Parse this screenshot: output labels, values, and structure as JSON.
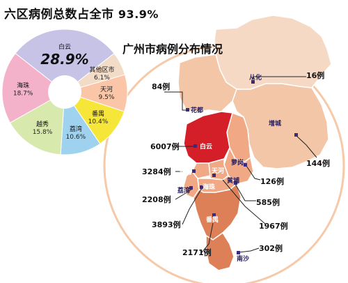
{
  "headline": {
    "text": "六区病例总数占全市",
    "value": "93.9%"
  },
  "map_title": "广州市病例分布情况",
  "colors": {
    "map_lightest": "#f6d9c5",
    "map_light": "#f2c6a6",
    "map_mid": "#f1a985",
    "map_dark": "#de8057",
    "map_red": "#d41f29",
    "pie_baiyun": "#c6c3e6",
    "pie_other": "#f3dcc7",
    "pie_tianhe": "#fbc6a8",
    "pie_panyu": "#f7e63a",
    "pie_liwan": "#9fd2ef",
    "pie_yuexiu": "#d8e9ad",
    "pie_haizhu": "#f3b2c9",
    "marker": "#3b2b7a",
    "leader": "#222222",
    "frame": "#f6c9a8"
  },
  "chart_data": [
    {
      "type": "pie",
      "title": "",
      "slices": [
        {
          "name": "白云",
          "value": 28.9,
          "label": "28.9%",
          "color_key": "pie_baiyun"
        },
        {
          "name": "其他区市",
          "value": 6.1,
          "label": "6.1%",
          "color_key": "pie_other"
        },
        {
          "name": "天河",
          "value": 9.5,
          "label": "9.5%",
          "color_key": "pie_tianhe"
        },
        {
          "name": "番禺",
          "value": 10.4,
          "label": "10.4%",
          "color_key": "pie_panyu"
        },
        {
          "name": "荔湾",
          "value": 10.6,
          "label": "10.6%",
          "color_key": "pie_liwan"
        },
        {
          "name": "越秀",
          "value": 15.8,
          "label": "15.8%",
          "color_key": "pie_yuexiu"
        },
        {
          "name": "海珠",
          "value": 18.7,
          "label": "18.7%",
          "color_key": "pie_haizhu"
        }
      ]
    },
    {
      "type": "map",
      "title": "广州市病例分布情况",
      "regions": [
        {
          "name": "从化",
          "count": 16,
          "label": "16例"
        },
        {
          "name": "花都",
          "count": 84,
          "label": "84例"
        },
        {
          "name": "增城",
          "count": 144,
          "label": "144例"
        },
        {
          "name": "白云",
          "count": 6007,
          "label": "6007例"
        },
        {
          "name": "萝岗",
          "count": 126,
          "label": "126例"
        },
        {
          "name": "越秀",
          "count": 3284,
          "label": "3284例"
        },
        {
          "name": "黄埔",
          "count": 585,
          "label": "585例"
        },
        {
          "name": "荔湾",
          "count": 2208,
          "label": "2208例"
        },
        {
          "name": "海珠",
          "count": 3893,
          "label": "3893例"
        },
        {
          "name": "天河",
          "count": 1967,
          "label": "1967例"
        },
        {
          "name": "番禺",
          "count": 2171,
          "label": "2171例"
        },
        {
          "name": "南沙",
          "count": 302,
          "label": "302例"
        }
      ]
    }
  ]
}
